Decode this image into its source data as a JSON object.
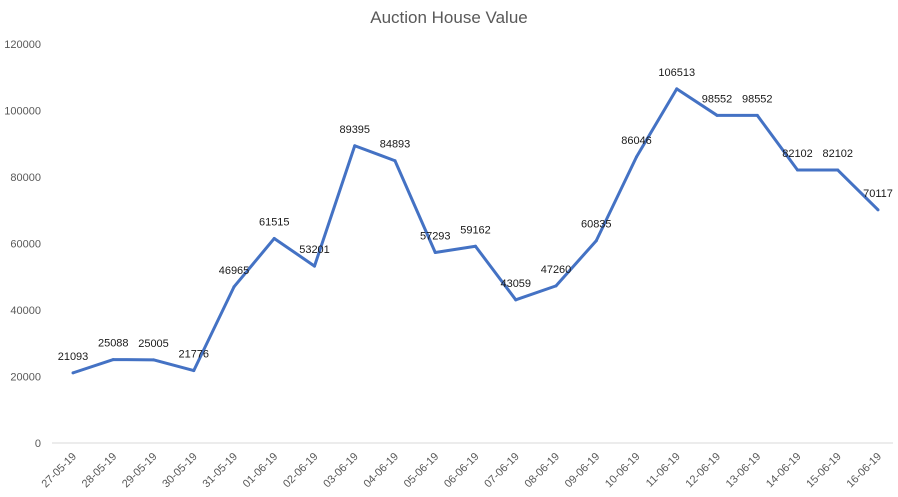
{
  "chart_data": {
    "type": "line",
    "title": "Auction House Value",
    "xlabel": "",
    "ylabel": "",
    "categories": [
      "27-05-19",
      "28-05-19",
      "29-05-19",
      "30-05-19",
      "31-05-19",
      "01-06-19",
      "02-06-19",
      "03-06-19",
      "04-06-19",
      "05-06-19",
      "06-06-19",
      "07-06-19",
      "08-06-19",
      "09-06-19",
      "10-06-19",
      "11-06-19",
      "12-06-19",
      "13-06-19",
      "14-06-19",
      "15-06-19",
      "16-06-19"
    ],
    "series": [
      {
        "values": [
          21093,
          25088,
          25005,
          21776,
          46965,
          61515,
          53201,
          89395,
          84893,
          57293,
          59162,
          43059,
          47260,
          60835,
          86046,
          106513,
          98552,
          98552,
          82102,
          82102,
          70117
        ]
      }
    ],
    "ylim": [
      0,
      120000
    ],
    "yticks": [
      0,
      20000,
      40000,
      60000,
      80000,
      100000,
      120000
    ],
    "grid": false,
    "legend": "none",
    "data_labels": true,
    "line_color": "#4472C4"
  }
}
